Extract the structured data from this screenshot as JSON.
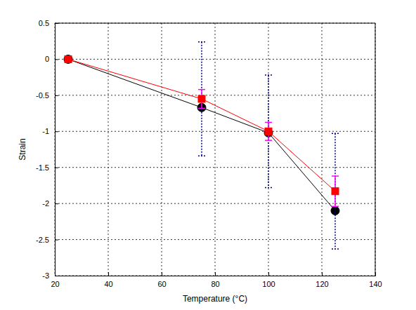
{
  "chart_data": {
    "type": "line",
    "x_label": "Temperature (°C)",
    "y_label": "Strain",
    "x": [
      25,
      75,
      100,
      125
    ],
    "series": [
      {
        "color": "#000000",
        "marker": "circle",
        "line_style": "solid",
        "values": [
          0,
          -0.67,
          -1.02,
          -2.1
        ]
      },
      {
        "color": "#ff0000",
        "marker": "square",
        "line_style": "solid",
        "values": [
          0,
          -0.55,
          -1.0,
          -1.83
        ],
        "errors": [
          {
            "color": "#000080",
            "line_style": "dotted",
            "values": [
              null,
              0.79,
              0.78,
              0.8
            ]
          },
          {
            "color": "#ff00ff",
            "line_style": "solid",
            "values": [
              null,
              0.13,
              0.125,
              0.21
            ]
          }
        ]
      }
    ],
    "xlim": [
      20,
      140
    ],
    "xticks": [
      20,
      40,
      60,
      80,
      100,
      120,
      140
    ],
    "ylim": [
      -3,
      0.5
    ],
    "yticks": [
      -3,
      -2.5,
      -2,
      -1.5,
      -1,
      -0.5,
      0,
      0.5
    ],
    "grid": true
  }
}
